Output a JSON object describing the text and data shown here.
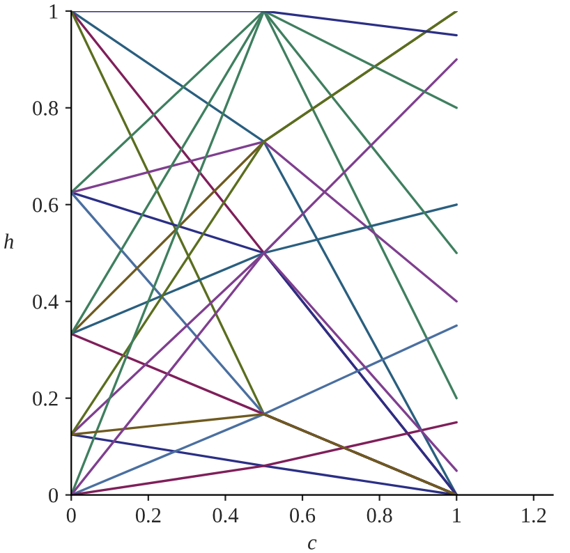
{
  "chart_data": {
    "type": "line",
    "xlabel": "c",
    "ylabel": "h",
    "x": [
      0,
      0.5,
      1
    ],
    "xlim": [
      0,
      1.25
    ],
    "xticks": [
      0,
      0.2,
      0.4,
      0.6,
      0.8,
      1,
      1.2
    ],
    "ylim": [
      0,
      1
    ],
    "yticks": [
      0,
      0.2,
      0.4,
      0.6,
      0.8,
      1
    ],
    "grid": false,
    "marker": "none",
    "line_style": "solid",
    "series": [
      {
        "color": "#2a5f7f",
        "values": [
          1,
          0.73,
          0
        ]
      },
      {
        "color": "#7f1f5a",
        "values": [
          1,
          0.5,
          0
        ]
      },
      {
        "color": "#5a6e1f",
        "values": [
          1,
          0.167,
          0
        ]
      },
      {
        "color": "#3f7f5f",
        "values": [
          0.625,
          1,
          0.2
        ]
      },
      {
        "color": "#2b2f85",
        "values": [
          0.625,
          0.5,
          0
        ]
      },
      {
        "color": "#7f3f8f",
        "values": [
          0.625,
          0.73,
          0.4
        ]
      },
      {
        "color": "#4a6fa0",
        "values": [
          0.625,
          0.167,
          0
        ]
      },
      {
        "color": "#6f5a1f",
        "values": [
          0.333,
          0.73,
          1
        ]
      },
      {
        "color": "#2a5f7f",
        "values": [
          0.333,
          0.5,
          0.6
        ]
      },
      {
        "color": "#7f1f5a",
        "values": [
          0.333,
          0.167,
          0
        ]
      },
      {
        "color": "#3f7f5f",
        "values": [
          0.333,
          1,
          0.5
        ]
      },
      {
        "color": "#7f3f8f",
        "values": [
          0.125,
          0.5,
          0.9
        ]
      },
      {
        "color": "#2b2f85",
        "values": [
          0.125,
          0.06,
          0
        ]
      },
      {
        "color": "#5a6e1f",
        "values": [
          0.125,
          0.73,
          1
        ]
      },
      {
        "color": "#4a6fa0",
        "values": [
          0,
          0.167,
          0.35
        ]
      },
      {
        "color": "#7f1f5a",
        "values": [
          0,
          0.06,
          0.15
        ]
      },
      {
        "color": "#3f7f5f",
        "values": [
          0,
          1,
          0.8
        ]
      },
      {
        "color": "#6f5a1f",
        "values": [
          0.125,
          0.167,
          0
        ]
      },
      {
        "color": "#2b2f85",
        "values": [
          1,
          1,
          0.95
        ]
      },
      {
        "color": "#7f3f8f",
        "values": [
          0,
          0.5,
          0.05
        ]
      }
    ]
  }
}
